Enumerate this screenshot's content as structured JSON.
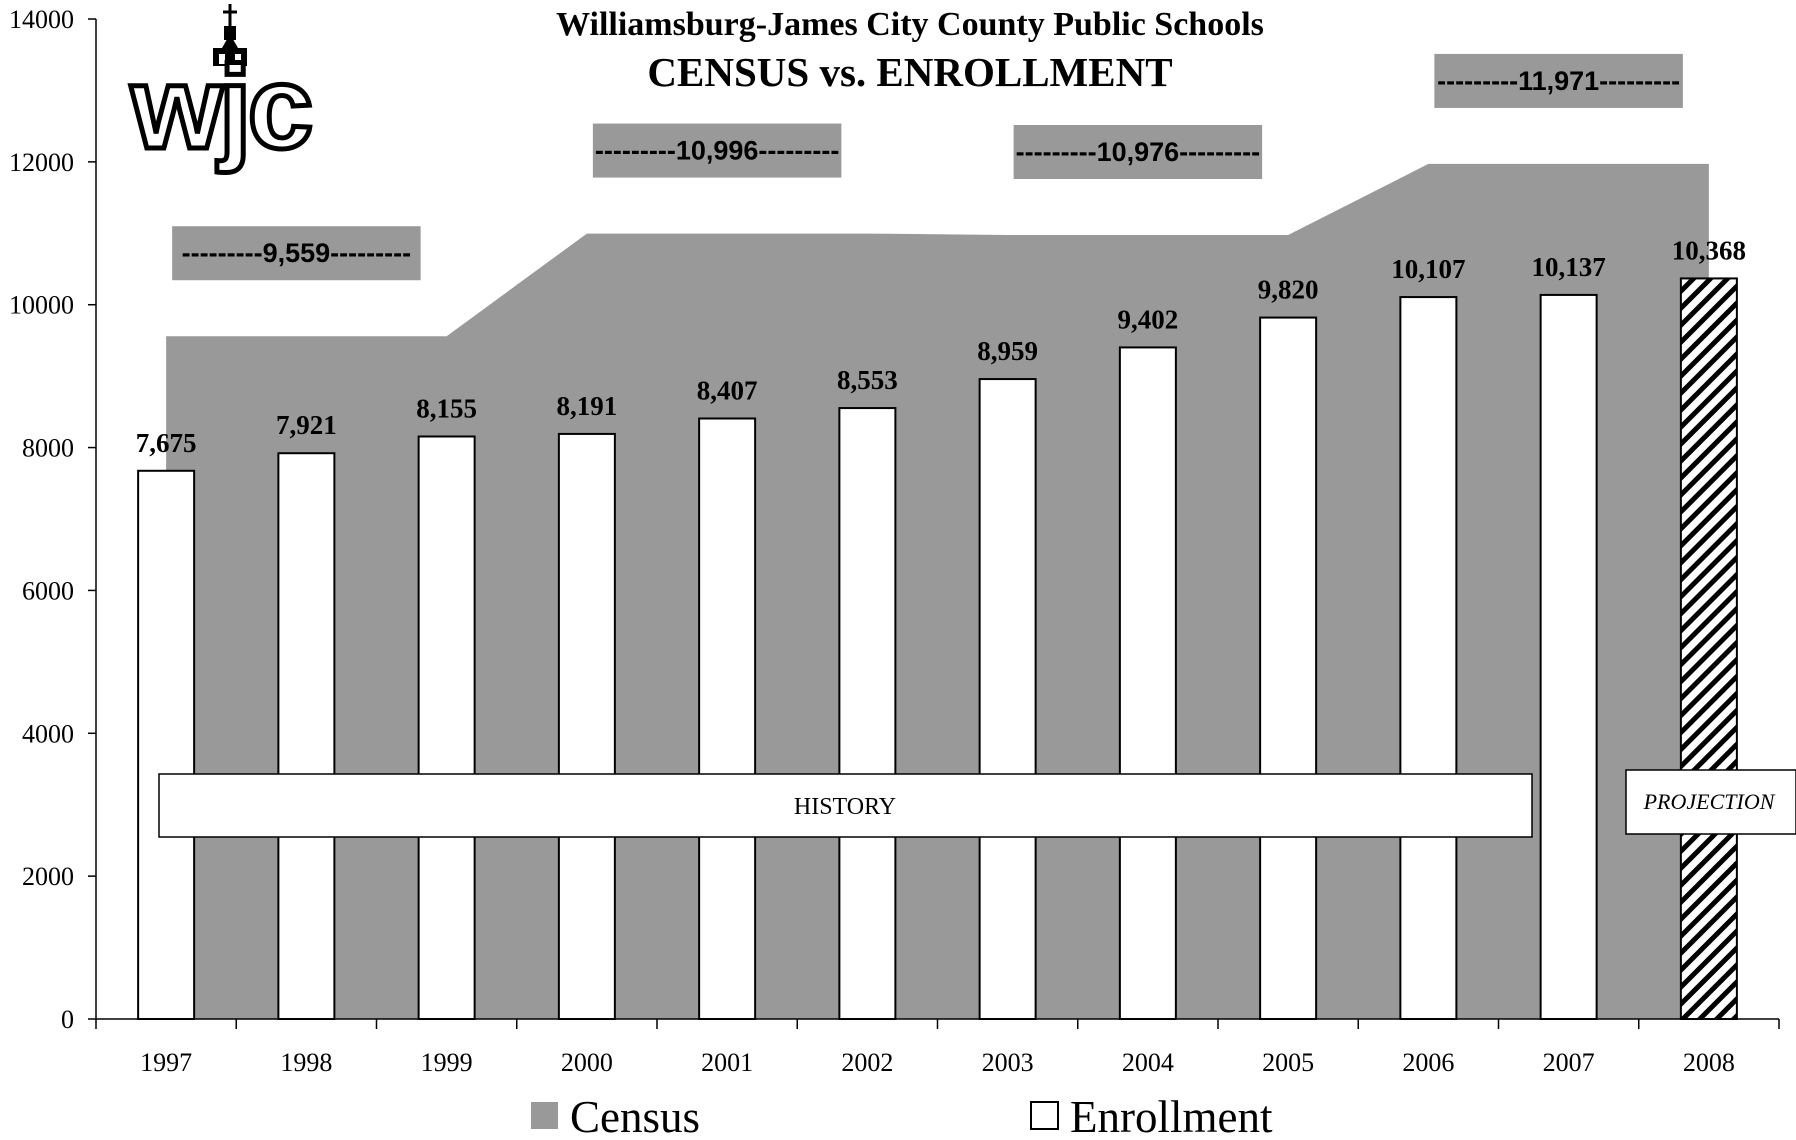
{
  "chart_data": {
    "type": "bar",
    "title": "Williamsburg-James City County Public Schools",
    "subtitle": "CENSUS vs. ENROLLMENT",
    "logo_text": "wjc",
    "categories": [
      "1997",
      "1998",
      "1999",
      "2000",
      "2001",
      "2002",
      "2003",
      "2004",
      "2005",
      "2006",
      "2007",
      "2008"
    ],
    "series": [
      {
        "name": "Enrollment",
        "type": "bar",
        "values": [
          7675,
          7921,
          8155,
          8191,
          8407,
          8553,
          8959,
          9402,
          9820,
          10107,
          10137,
          10368
        ],
        "labels": [
          "7,675",
          "7,921",
          "8,155",
          "8,191",
          "8,407",
          "8,553",
          "8,959",
          "9,402",
          "9,820",
          "10,107",
          "10,137",
          "10,368"
        ],
        "projected": [
          false,
          false,
          false,
          false,
          false,
          false,
          false,
          false,
          false,
          false,
          false,
          true
        ]
      },
      {
        "name": "Census",
        "type": "area",
        "values": [
          9559,
          9559,
          9559,
          10996,
          10996,
          10996,
          10976,
          10976,
          10976,
          11971,
          11971,
          11971
        ]
      }
    ],
    "census_labels": [
      {
        "text": "---------9,559---------",
        "categories": [
          "1997",
          "1998",
          "1999"
        ]
      },
      {
        "text": "---------10,996---------",
        "categories": [
          "2000",
          "2001",
          "2002"
        ]
      },
      {
        "text": "---------10,976---------",
        "categories": [
          "2003",
          "2004",
          "2005"
        ]
      },
      {
        "text": "---------11,971---------",
        "categories": [
          "2006",
          "2007",
          "2008"
        ]
      }
    ],
    "annotations": {
      "history": "HISTORY",
      "projection": "PROJECTION"
    },
    "y_ticks": [
      0,
      2000,
      4000,
      6000,
      8000,
      10000,
      12000,
      14000
    ],
    "ylim": [
      0,
      14000
    ],
    "xlabel": "",
    "ylabel": "",
    "grid": false,
    "legend_position": "bottom",
    "colors": {
      "census_fill": "#999999",
      "enrollment_fill": "#ffffff",
      "bar_stroke": "#000000",
      "label_box": "#999999"
    }
  }
}
